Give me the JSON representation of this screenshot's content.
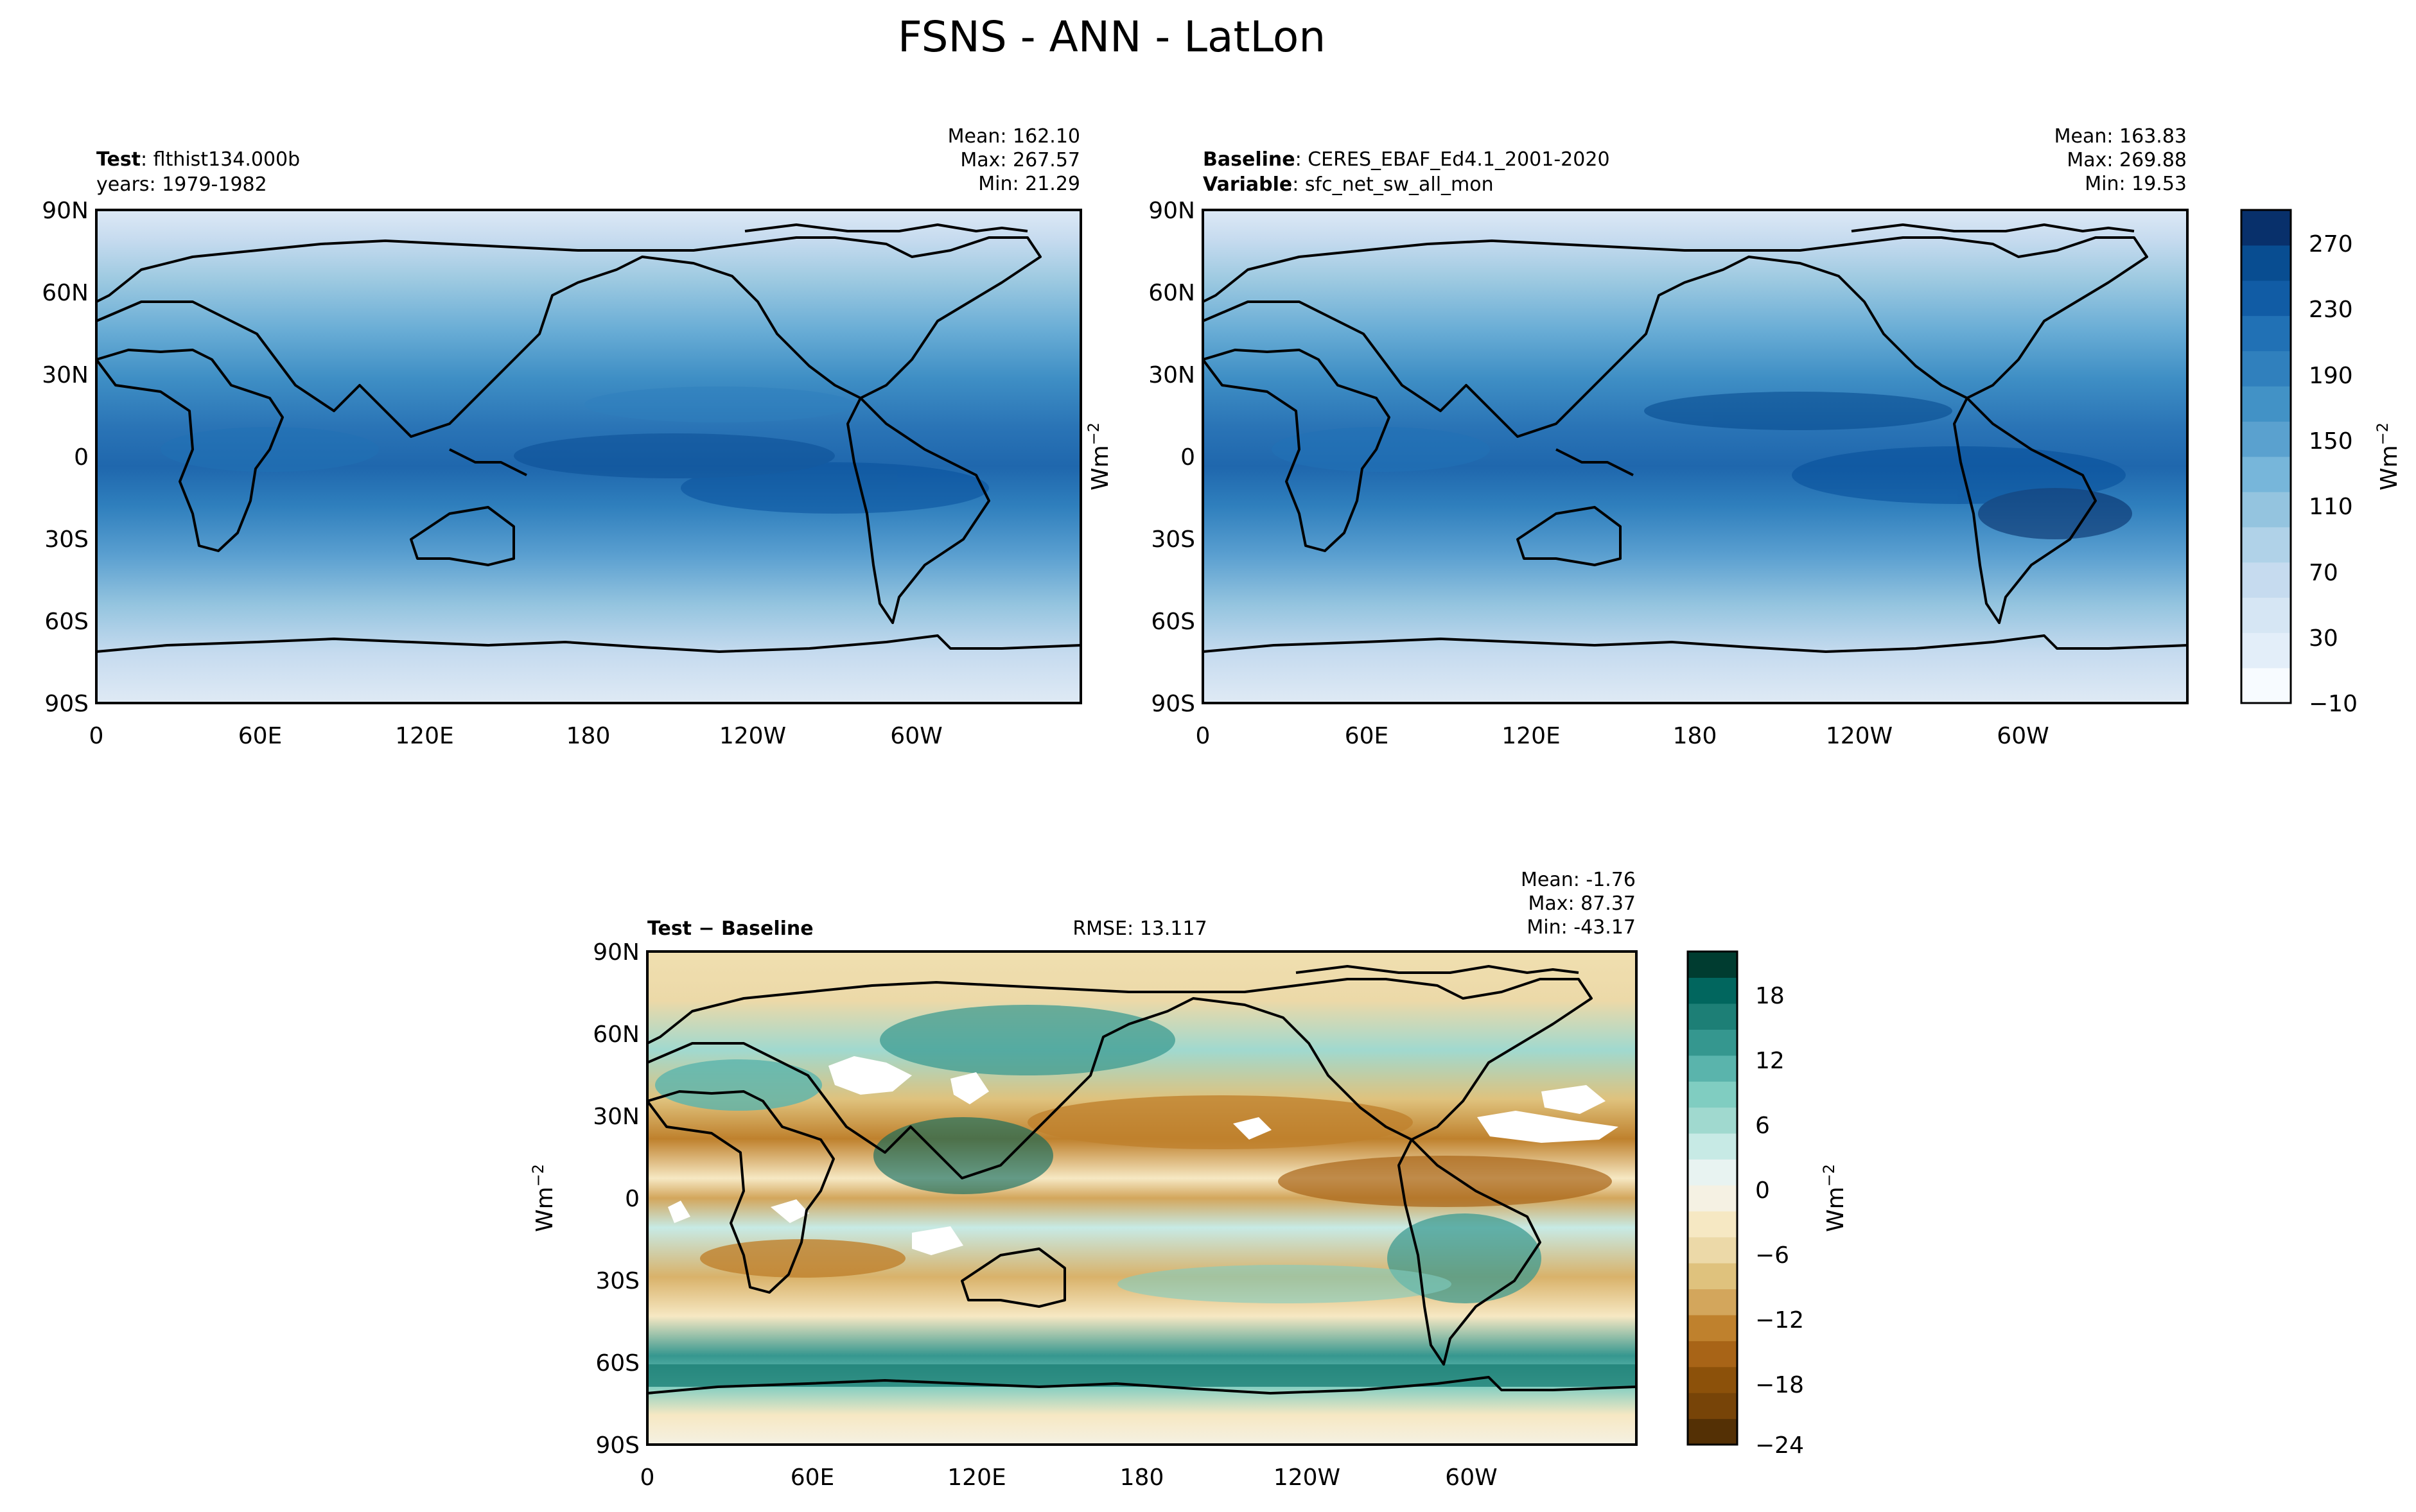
{
  "figure": {
    "title": "FSNS - ANN - LatLon"
  },
  "panels": {
    "test": {
      "label_bold": "Test",
      "label_rest": ": flthist134.000b",
      "line2": "years: 1979-1982",
      "stats": {
        "mean": "Mean: 162.10",
        "max": "Max: 267.57",
        "min": "Min: 21.29"
      }
    },
    "baseline": {
      "label_bold": "Baseline",
      "label_rest": ": CERES_EBAF_Ed4.1_2001-2020",
      "line2_bold": "Variable",
      "line2_rest": ": sfc_net_sw_all_mon",
      "stats": {
        "mean": "Mean: 163.83",
        "max": "Max: 269.88",
        "min": "Min: 19.53"
      }
    },
    "diff": {
      "label": "Test − Baseline",
      "rmse": "RMSE: 13.117",
      "stats": {
        "mean": "Mean: -1.76",
        "max": "Max: 87.37",
        "min": "Min: -43.17"
      }
    }
  },
  "axes": {
    "lat_ticks": [
      "90N",
      "60N",
      "30N",
      "0",
      "30S",
      "60S",
      "90S"
    ],
    "lon_ticks": [
      "0",
      "60E",
      "120E",
      "180",
      "120W",
      "60W"
    ]
  },
  "colorbars": {
    "top": {
      "label": "Wm",
      "label_sup": "−2",
      "ticks": [
        "270",
        "230",
        "190",
        "150",
        "110",
        "70",
        "30",
        "−10"
      ],
      "colors": [
        "#f7fbff",
        "#e3eef9",
        "#d6e6f4",
        "#c6dbef",
        "#b0d2e8",
        "#94c4df",
        "#77b6da",
        "#5aa1cf",
        "#4292c6",
        "#3080bd",
        "#2171b5",
        "#115ca5",
        "#084d91",
        "#08306b"
      ]
    },
    "diff": {
      "label": "Wm",
      "label_sup": "−2",
      "ticks": [
        "18",
        "12",
        "6",
        "0",
        "−6",
        "−12",
        "−18",
        "−24"
      ],
      "colors": [
        "#543005",
        "#774408",
        "#8c510a",
        "#a86417",
        "#bf812d",
        "#d3a65c",
        "#dfc27d",
        "#ecd9a8",
        "#f6e8c3",
        "#f5f1e3",
        "#e8f3f1",
        "#c7eae5",
        "#a0d9cf",
        "#80cdc1",
        "#5ab4ac",
        "#35978f",
        "#1d7f76",
        "#01665e",
        "#003c30"
      ]
    }
  },
  "legend_colors": {
    "coast": "#000000",
    "missing": "#ffffff"
  }
}
